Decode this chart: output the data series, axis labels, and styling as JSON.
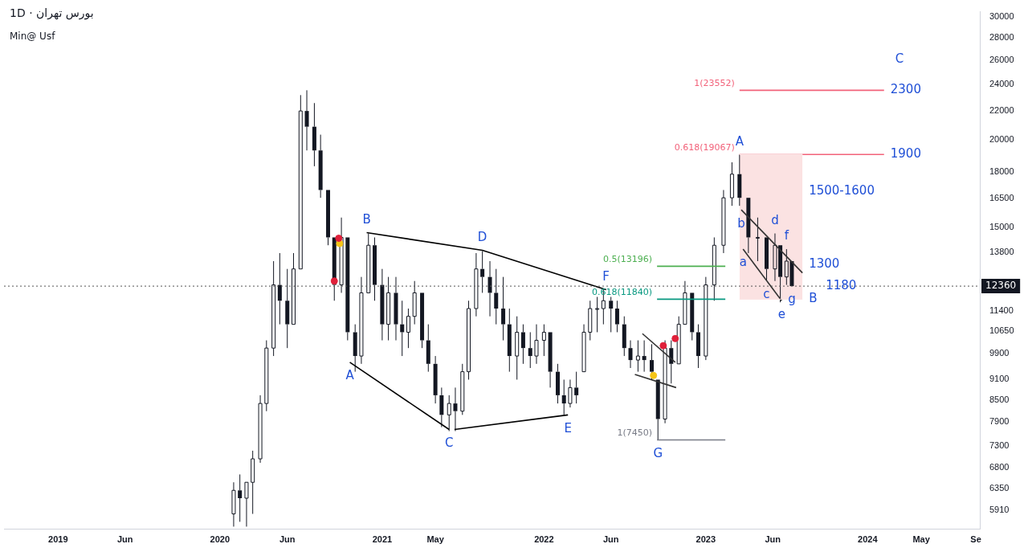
{
  "chart_data": {
    "type": "candlestick",
    "title": "بورس تهران · 1D",
    "subtitle": "Min@ Usf",
    "color": "#131722",
    "log": "y",
    "xlim": [
      "2018-09-01",
      "2024-09-10"
    ],
    "ylim": [
      5550,
      30500
    ],
    "xticks": [
      {
        "value": "2019-01-01",
        "label": "2019"
      },
      {
        "value": "2019-06-01",
        "label": "Jun"
      },
      {
        "value": "2020-01-01",
        "label": "2020"
      },
      {
        "value": "2020-06-01",
        "label": "Jun"
      },
      {
        "value": "2021-01-01",
        "label": "2021"
      },
      {
        "value": "2021-05-01",
        "label": "May"
      },
      {
        "value": "2022-01-01",
        "label": "2022"
      },
      {
        "value": "2022-06-01",
        "label": "Jun"
      },
      {
        "value": "2023-01-01",
        "label": "2023"
      },
      {
        "value": "2023-06-01",
        "label": "Jun"
      },
      {
        "value": "2024-01-01",
        "label": "2024"
      },
      {
        "value": "2024-05-01",
        "label": "May"
      },
      {
        "value": "2024-09-01",
        "label": "Se"
      }
    ],
    "yticks": [
      5910,
      6350,
      6800,
      7300,
      7900,
      8500,
      9100,
      9900,
      10650,
      11400,
      13800,
      15000,
      16500,
      18000,
      20000,
      22000,
      24000,
      26000,
      28000,
      30000
    ],
    "x": [
      "2020-02-01",
      "2020-02-15",
      "2020-03-01",
      "2020-03-15",
      "2020-04-01",
      "2020-04-15",
      "2020-05-01",
      "2020-05-15",
      "2020-06-01",
      "2020-06-15",
      "2020-07-01",
      "2020-07-15",
      "2020-08-01",
      "2020-08-15",
      "2020-09-01",
      "2020-09-15",
      "2020-10-01",
      "2020-10-15",
      "2020-11-01",
      "2020-11-15",
      "2020-12-01",
      "2020-12-15",
      "2021-01-01",
      "2021-01-15",
      "2021-02-01",
      "2021-02-15",
      "2021-03-01",
      "2021-03-15",
      "2021-04-01",
      "2021-04-15",
      "2021-05-01",
      "2021-05-15",
      "2021-06-01",
      "2021-06-15",
      "2021-07-01",
      "2021-07-15",
      "2021-08-01",
      "2021-08-15",
      "2021-09-01",
      "2021-09-15",
      "2021-10-01",
      "2021-10-15",
      "2021-11-01",
      "2021-11-15",
      "2021-12-01",
      "2021-12-15",
      "2022-01-01",
      "2022-01-15",
      "2022-02-01",
      "2022-02-15",
      "2022-03-01",
      "2022-03-15",
      "2022-04-01",
      "2022-04-15",
      "2022-05-01",
      "2022-05-15",
      "2022-06-01",
      "2022-06-15",
      "2022-07-01",
      "2022-07-15",
      "2022-08-01",
      "2022-08-15",
      "2022-09-01",
      "2022-09-15",
      "2022-10-01",
      "2022-10-15",
      "2022-11-01",
      "2022-11-15",
      "2022-12-01",
      "2022-12-15",
      "2023-01-01",
      "2023-01-20",
      "2023-02-10",
      "2023-03-01",
      "2023-03-18",
      "2023-04-07",
      "2023-04-28",
      "2023-05-18",
      "2023-06-06",
      "2023-06-18",
      "2023-07-02",
      "2023-07-14"
    ],
    "ohlc": [
      [
        5840,
        6480,
        5600,
        6310
      ],
      [
        6310,
        6650,
        5690,
        6150
      ],
      [
        6150,
        6480,
        5600,
        6480
      ],
      [
        6480,
        7190,
        5840,
        7000
      ],
      [
        7000,
        8630,
        6910,
        8400
      ],
      [
        8400,
        10340,
        8190,
        10080
      ],
      [
        10080,
        13420,
        9820,
        12410
      ],
      [
        12410,
        13780,
        10900,
        11780
      ],
      [
        11780,
        13080,
        10080,
        10900
      ],
      [
        10900,
        13780,
        10900,
        13080
      ],
      [
        13080,
        23180,
        13080,
        22000
      ],
      [
        22000,
        23552,
        19320,
        20890
      ],
      [
        20890,
        22580,
        18340,
        19320
      ],
      [
        19320,
        20350,
        16530,
        16960
      ],
      [
        16960,
        16960,
        14140,
        14510
      ],
      [
        14510,
        14510,
        11780,
        12410
      ],
      [
        12410,
        15490,
        12090,
        14510
      ],
      [
        14510,
        14510,
        10340,
        10620
      ],
      [
        10620,
        10900,
        9325,
        9820
      ],
      [
        9820,
        12740,
        9570,
        12090
      ],
      [
        12090,
        14700,
        12090,
        14140
      ],
      [
        14140,
        14510,
        11780,
        12410
      ],
      [
        12410,
        13080,
        10340,
        10900
      ],
      [
        10900,
        12740,
        10340,
        12090
      ],
      [
        12090,
        12740,
        10340,
        10900
      ],
      [
        10900,
        11780,
        9820,
        10620
      ],
      [
        10620,
        11480,
        10080,
        11190
      ],
      [
        11190,
        12570,
        10900,
        12090
      ],
      [
        12090,
        12090,
        10080,
        10340
      ],
      [
        10340,
        10900,
        9325,
        9570
      ],
      [
        9570,
        9820,
        8400,
        8630
      ],
      [
        8630,
        8850,
        7770,
        8090
      ],
      [
        8090,
        8630,
        7670,
        8400
      ],
      [
        8400,
        8850,
        7670,
        8190
      ],
      [
        8190,
        9570,
        8090,
        9325
      ],
      [
        9325,
        11780,
        9085,
        11480
      ],
      [
        11480,
        13780,
        11190,
        13080
      ],
      [
        13080,
        13870,
        12090,
        12740
      ],
      [
        12740,
        13420,
        11190,
        12090
      ],
      [
        12090,
        13080,
        10900,
        11480
      ],
      [
        11480,
        12740,
        10340,
        10900
      ],
      [
        10900,
        11480,
        9325,
        9820
      ],
      [
        9820,
        11190,
        9085,
        10620
      ],
      [
        10620,
        10900,
        9570,
        10080
      ],
      [
        10080,
        10620,
        9440,
        9820
      ],
      [
        9820,
        10900,
        9570,
        10340
      ],
      [
        10340,
        10900,
        9820,
        10620
      ],
      [
        10620,
        10620,
        8850,
        9325
      ],
      [
        9325,
        9570,
        8400,
        8630
      ],
      [
        8630,
        9085,
        8090,
        8400
      ],
      [
        8400,
        9085,
        8290,
        8850
      ],
      [
        8850,
        9325,
        8400,
        8630
      ],
      [
        9325,
        10900,
        9325,
        10620
      ],
      [
        10620,
        11780,
        10340,
        11480
      ],
      [
        11480,
        11930,
        10620,
        11480
      ],
      [
        11480,
        12250,
        10900,
        11780
      ],
      [
        11780,
        11930,
        10620,
        11480
      ],
      [
        11480,
        11780,
        10620,
        10900
      ],
      [
        10900,
        11190,
        9820,
        10080
      ],
      [
        10080,
        10340,
        9440,
        9690
      ],
      [
        9690,
        10340,
        9325,
        9820
      ],
      [
        9820,
        10340,
        9325,
        9690
      ],
      [
        9690,
        10210,
        9085,
        9325
      ],
      [
        9085,
        9085,
        7450,
        7980
      ],
      [
        7980,
        10340,
        7870,
        10080
      ],
      [
        10080,
        10340,
        8970,
        9570
      ],
      [
        9570,
        11190,
        9570,
        10900
      ],
      [
        10900,
        12570,
        10900,
        12090
      ],
      [
        12090,
        12090,
        10340,
        10620
      ],
      [
        10620,
        10900,
        9440,
        9820
      ],
      [
        9820,
        12740,
        9690,
        12410
      ],
      [
        12410,
        14510,
        11780,
        14140
      ],
      [
        14140,
        16960,
        13780,
        16530
      ],
      [
        16530,
        18580,
        16100,
        17870
      ],
      [
        17870,
        19067,
        16100,
        16530
      ],
      [
        16530,
        16530,
        13780,
        14510
      ],
      [
        14510,
        15490,
        13420,
        14510
      ],
      [
        14510,
        14510,
        12570,
        13080
      ],
      [
        13080,
        14700,
        12570,
        14140
      ],
      [
        14140,
        14140,
        11720,
        12740
      ],
      [
        12740,
        13960,
        12410,
        13420
      ],
      [
        13420,
        13420,
        12360,
        12360
      ]
    ],
    "series": [
      {
        "type": "line",
        "color": "#fbe2e2",
        "marker": "none",
        "x": [
          "2023-03-18",
          "2023-08-07"
        ],
        "values": [
          19067,
          19067
        ],
        "lower": [
          11840,
          11840
        ],
        "upper": [
          19067,
          19067
        ]
      },
      {
        "type": "line",
        "color": "#000000",
        "marker": "none",
        "x": [
          "2020-10-20",
          "2021-06-01"
        ],
        "values": [
          9620,
          7710
        ]
      },
      {
        "type": "line",
        "color": "#000000",
        "marker": "none",
        "x": [
          "2021-06-13",
          "2022-02-24"
        ],
        "values": [
          7710,
          8090
        ]
      },
      {
        "type": "line",
        "color": "#000000",
        "marker": "none",
        "x": [
          "2020-11-27",
          "2021-08-15",
          "2022-05-21"
        ],
        "values": [
          14740,
          13910,
          12220
        ]
      },
      {
        "type": "line",
        "color": "#333333",
        "marker": "none",
        "x": [
          "2022-08-11",
          "2022-10-24"
        ],
        "values": [
          10570,
          9620
        ]
      },
      {
        "type": "line",
        "color": "#333333",
        "marker": "none",
        "x": [
          "2022-07-25",
          "2022-10-26"
        ],
        "values": [
          9240,
          8850
        ]
      },
      {
        "type": "line",
        "color": "#333333",
        "marker": "none",
        "x": [
          "2023-03-22",
          "2023-08-07"
        ],
        "values": [
          15890,
          12910
        ]
      },
      {
        "type": "line",
        "color": "#333333",
        "marker": "none",
        "x": [
          "2023-03-26",
          "2023-06-21"
        ],
        "values": [
          13960,
          11780
        ]
      },
      {
        "name": "1(23552)",
        "type": "line",
        "color": "#f2627a",
        "marker": "none",
        "x": [
          "2023-03-18",
          "2024-02-07"
        ],
        "values": [
          23552,
          23552
        ]
      },
      {
        "name": "0.618(19067)",
        "type": "line",
        "color": "#f2627a",
        "marker": "none",
        "x": [
          "2023-03-18",
          "2024-02-07"
        ],
        "values": [
          19067,
          19067
        ]
      },
      {
        "name": "0.5(13196)",
        "type": "line",
        "color": "#4caf50",
        "marker": "none",
        "x": [
          "2022-09-13",
          "2023-02-14"
        ],
        "values": [
          13196,
          13196
        ]
      },
      {
        "name": "0.618(11840)",
        "type": "line",
        "color": "#089981",
        "marker": "none",
        "x": [
          "2022-09-13",
          "2023-02-14"
        ],
        "values": [
          11840,
          11840
        ]
      },
      {
        "name": "1(7450)",
        "type": "line",
        "color": "#787b86",
        "marker": "none",
        "x": [
          "2022-09-13",
          "2023-02-14"
        ],
        "values": [
          7450,
          7450
        ]
      },
      {
        "type": "scatter",
        "color": "#e0203a",
        "marker": "circle",
        "x": [
          "2020-09-15",
          "2020-09-25",
          "2022-09-27",
          "2022-10-24"
        ],
        "values": [
          12570,
          14470,
          10160,
          10400
        ]
      },
      {
        "type": "scatter",
        "color": "#f5c518",
        "marker": "circle",
        "x": [
          "2020-09-27",
          "2022-09-05"
        ],
        "values": [
          14220,
          9210
        ]
      }
    ],
    "ref_lines": [
      {
        "axis": "y",
        "value": 12360,
        "label": "12360",
        "color": "#555555",
        "line_style": "dotted"
      }
    ],
    "annotations": [
      {
        "text": "A",
        "x": "2020-10-20",
        "y": 9620
      },
      {
        "text": "B",
        "x": "2020-11-27",
        "y": 14740
      },
      {
        "text": "C",
        "x": "2021-06-01",
        "y": 7710
      },
      {
        "text": "D",
        "x": "2021-08-15",
        "y": 13910
      },
      {
        "text": "E",
        "x": "2022-02-24",
        "y": 8090
      },
      {
        "text": "F",
        "x": "2022-05-21",
        "y": 12220
      },
      {
        "text": "G",
        "x": "2022-09-15",
        "y": 7450
      },
      {
        "text": "A",
        "x": "2023-03-18",
        "y": 19067
      },
      {
        "text": "B",
        "x": "2023-08-07",
        "y": 11840
      },
      "C",
      {
        "text": "a",
        "x": "2023-03-26",
        "y": 13960
      },
      {
        "text": "b",
        "x": "2023-03-22",
        "y": 15890
      },
      {
        "text": "c",
        "x": "2023-05-18",
        "y": 12570
      },
      {
        "text": "d",
        "x": "2023-06-06",
        "y": 14700
      },
      {
        "text": "e",
        "x": "2023-06-21",
        "y": 11780
      },
      {
        "text": "f",
        "x": "2023-07-02",
        "y": 13960
      },
      {
        "text": "g",
        "x": "2023-07-14",
        "y": 12360
      },
      {
        "text": "2300",
        "x": "2024-02-07",
        "y": 23552
      },
      {
        "text": "1900",
        "x": "2024-02-07",
        "y": 19067
      },
      {
        "text": "1500-1600",
        "x": "2023-08-07",
        "y": 16900
      },
      {
        "text": "1300",
        "x": "2023-08-07",
        "y": 13280
      },
      {
        "text": "1180",
        "x": "2023-09-14",
        "y": 12360
      }
    ]
  }
}
